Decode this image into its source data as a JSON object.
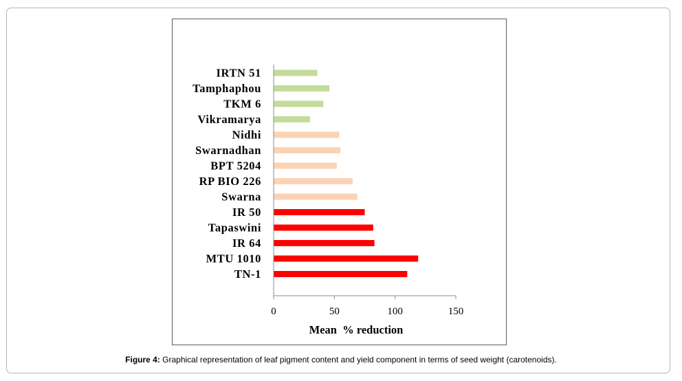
{
  "chart_data": {
    "type": "bar",
    "orientation": "horizontal",
    "categories": [
      "IRTN 51",
      "Tamphaphou",
      "TKM 6",
      "Vikramarya",
      "Nidhi",
      "Swarnadhan",
      "BPT 5204",
      "RP BIO 226",
      "Swarna",
      "IR 50",
      "Tapaswini",
      "IR 64",
      "MTU 1010",
      "TN-1"
    ],
    "values": [
      36,
      46,
      41,
      30,
      54,
      55,
      52,
      65,
      69,
      75,
      82,
      83,
      119,
      110
    ],
    "bar_colors": [
      "#c3dc9c",
      "#c3dc9c",
      "#c3dc9c",
      "#c3dc9c",
      "#fbd3b4",
      "#fbd3b4",
      "#fbd3b4",
      "#fbd3b4",
      "#fbd3b4",
      "#ff0000",
      "#ff0000",
      "#ff0000",
      "#ff0000",
      "#ff0000"
    ],
    "xlabel": "Mean  % reduction",
    "xlim": [
      0,
      150
    ],
    "xticks": [
      0,
      50,
      100,
      150
    ],
    "grid": false,
    "legend": "none"
  },
  "caption": {
    "label": "Figure 4:",
    "text": " Graphical representation of leaf pigment content and yield component in terms of seed weight (carotenoids)."
  }
}
